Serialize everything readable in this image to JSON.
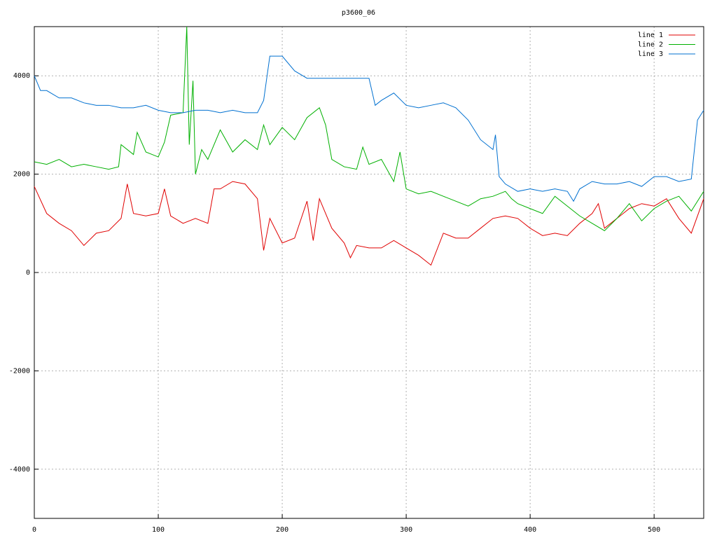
{
  "chart_data": {
    "type": "line",
    "title": "p3600_06",
    "xlim": [
      0,
      540
    ],
    "xticks": [
      0,
      100,
      200,
      300,
      400,
      500
    ],
    "ylim": [
      -5000,
      5000
    ],
    "yticks": [
      -4000,
      -2000,
      0,
      2000,
      4000
    ],
    "grid": true,
    "legend": "top-right",
    "series": [
      {
        "name": "line 1",
        "color": "#e00000",
        "x": [
          0,
          10,
          20,
          30,
          40,
          50,
          60,
          70,
          75,
          80,
          90,
          100,
          105,
          110,
          120,
          130,
          140,
          145,
          150,
          160,
          170,
          180,
          185,
          190,
          200,
          210,
          220,
          225,
          230,
          240,
          250,
          255,
          260,
          270,
          280,
          290,
          300,
          310,
          320,
          330,
          340,
          350,
          360,
          370,
          380,
          390,
          400,
          410,
          420,
          430,
          440,
          450,
          455,
          460,
          470,
          480,
          490,
          500,
          510,
          520,
          530,
          540
        ],
        "values": [
          1750,
          1200,
          1000,
          850,
          550,
          800,
          850,
          1100,
          1800,
          1200,
          1150,
          1200,
          1700,
          1150,
          1000,
          1100,
          1000,
          1700,
          1700,
          1850,
          1800,
          1500,
          450,
          1100,
          600,
          700,
          1450,
          650,
          1500,
          900,
          600,
          300,
          550,
          500,
          500,
          650,
          500,
          350,
          150,
          800,
          700,
          700,
          900,
          1100,
          1150,
          1100,
          900,
          750,
          800,
          750,
          1000,
          1200,
          1400,
          900,
          1100,
          1300,
          1400,
          1350,
          1500,
          1100,
          800,
          1500
        ]
      },
      {
        "name": "line 2",
        "color": "#00b000",
        "x": [
          0,
          10,
          20,
          30,
          40,
          50,
          60,
          68,
          70,
          80,
          83,
          90,
          100,
          105,
          110,
          120,
          123,
          125,
          128,
          130,
          135,
          140,
          150,
          160,
          170,
          180,
          185,
          190,
          200,
          210,
          220,
          230,
          235,
          240,
          250,
          260,
          265,
          270,
          280,
          290,
          295,
          300,
          310,
          320,
          330,
          340,
          350,
          360,
          370,
          380,
          385,
          390,
          400,
          410,
          420,
          430,
          440,
          450,
          460,
          470,
          480,
          490,
          500,
          510,
          520,
          530,
          540
        ],
        "values": [
          2250,
          2200,
          2300,
          2150,
          2200,
          2150,
          2100,
          2150,
          2600,
          2400,
          2850,
          2450,
          2350,
          2650,
          3200,
          3250,
          5000,
          2600,
          3900,
          2000,
          2500,
          2300,
          2900,
          2450,
          2700,
          2500,
          3000,
          2600,
          2950,
          2700,
          3150,
          3350,
          3000,
          2300,
          2150,
          2100,
          2550,
          2200,
          2300,
          1850,
          2450,
          1700,
          1600,
          1650,
          1550,
          1450,
          1350,
          1500,
          1550,
          1650,
          1500,
          1400,
          1300,
          1200,
          1550,
          1350,
          1150,
          1000,
          850,
          1100,
          1400,
          1050,
          1300,
          1450,
          1550,
          1250,
          1650
        ]
      },
      {
        "name": "line 3",
        "color": "#0070d0",
        "x": [
          0,
          5,
          10,
          20,
          30,
          40,
          50,
          60,
          70,
          80,
          90,
          100,
          110,
          120,
          130,
          140,
          150,
          160,
          170,
          180,
          185,
          190,
          200,
          210,
          220,
          230,
          240,
          250,
          260,
          270,
          275,
          280,
          290,
          300,
          310,
          320,
          330,
          340,
          350,
          360,
          370,
          372,
          375,
          380,
          390,
          400,
          410,
          420,
          430,
          435,
          440,
          450,
          460,
          470,
          480,
          490,
          500,
          510,
          520,
          530,
          535,
          540
        ],
        "values": [
          4000,
          3700,
          3700,
          3550,
          3550,
          3450,
          3400,
          3400,
          3350,
          3350,
          3400,
          3300,
          3250,
          3250,
          3300,
          3300,
          3250,
          3300,
          3250,
          3250,
          3500,
          4400,
          4400,
          4100,
          3950,
          3950,
          3950,
          3950,
          3950,
          3950,
          3400,
          3500,
          3650,
          3400,
          3350,
          3400,
          3450,
          3350,
          3100,
          2700,
          2500,
          2800,
          1950,
          1800,
          1650,
          1700,
          1650,
          1700,
          1650,
          1450,
          1700,
          1850,
          1800,
          1800,
          1850,
          1750,
          1950,
          1950,
          1850,
          1900,
          3100,
          3300
        ]
      }
    ]
  }
}
